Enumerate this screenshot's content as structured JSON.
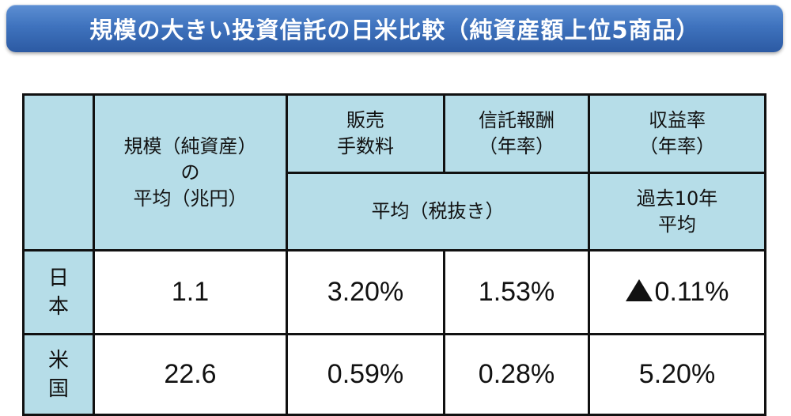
{
  "title": "規模の大きい投資信託の日米比較（純資産額上位5商品）",
  "table": {
    "header": {
      "corner": "",
      "scale": [
        "規模（純資産）",
        "の",
        "平均（兆円）"
      ],
      "sales_fee": [
        "販売",
        "手数料"
      ],
      "trust_fee": [
        "信託報酬",
        "（年率）"
      ],
      "return_rate": [
        "収益率",
        "（年率）"
      ],
      "fee_average": "平均（税抜き）",
      "return_period": [
        "過去10年",
        "平均"
      ]
    },
    "rows": [
      {
        "label": [
          "日",
          "本"
        ],
        "scale": "1.1",
        "sales_fee": "3.20%",
        "trust_fee": "1.53%",
        "return_rate": "0.11%",
        "return_negative_icon": "triangle-up-icon"
      },
      {
        "label": [
          "米",
          "国"
        ],
        "scale": "22.6",
        "sales_fee": "0.59%",
        "trust_fee": "0.28%",
        "return_rate": "5.20%"
      }
    ]
  }
}
